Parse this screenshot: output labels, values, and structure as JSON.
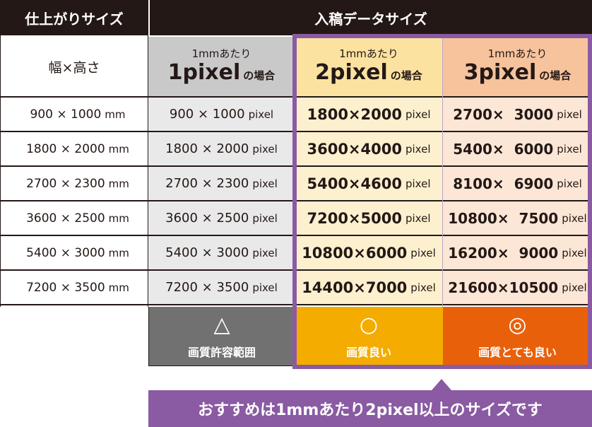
{
  "header": {
    "left_title": "仕上がりサイズ",
    "right_title": "入稿データサイズ"
  },
  "columns": [
    {
      "label": "幅×高さ"
    },
    {
      "top": "1mmあたり",
      "big": "1pixel",
      "suffix": "の場合"
    },
    {
      "top": "1mmあたり",
      "big": "2pixel",
      "suffix": "の場合"
    },
    {
      "top": "1mmあたり",
      "big": "3pixel",
      "suffix": "の場合"
    }
  ],
  "rows": [
    {
      "mm": "900 × 1000",
      "p1": "900 × 1000",
      "p2": "1800×2000",
      "p3": "2700×  3000"
    },
    {
      "mm": "1800 × 2000",
      "p1": "1800 × 2000",
      "p2": "3600×4000",
      "p3": "5400×  6000"
    },
    {
      "mm": "2700 × 2300",
      "p1": "2700 × 2300",
      "p2": "5400×4600",
      "p3": "8100×  6900"
    },
    {
      "mm": "3600 × 2500",
      "p1": "3600 × 2500",
      "p2": "7200×5000",
      "p3": "10800×  7500"
    },
    {
      "mm": "5400 × 3000",
      "p1": "5400 × 3000",
      "p2": "10800×6000",
      "p3": "16200×  9000"
    },
    {
      "mm": "7200 × 3500",
      "p1": "7200 × 3500",
      "p2": "14400×7000",
      "p3": "21600×10500"
    }
  ],
  "units": {
    "mm": "mm",
    "pixel": "pixel"
  },
  "quality": [
    {
      "symbol": "△",
      "label": "画質許容範囲"
    },
    {
      "symbol": "○",
      "label": "画質良い"
    },
    {
      "symbol": "◎",
      "label": "画質とても良い"
    }
  ],
  "recommendation": "おすすめは1mmあたり2pixel以上のサイズです",
  "colors": {
    "header": "#231815",
    "purple": "#8a5aa3",
    "gray": "#727171",
    "yellow": "#f4ac00",
    "orange": "#e9600b"
  }
}
